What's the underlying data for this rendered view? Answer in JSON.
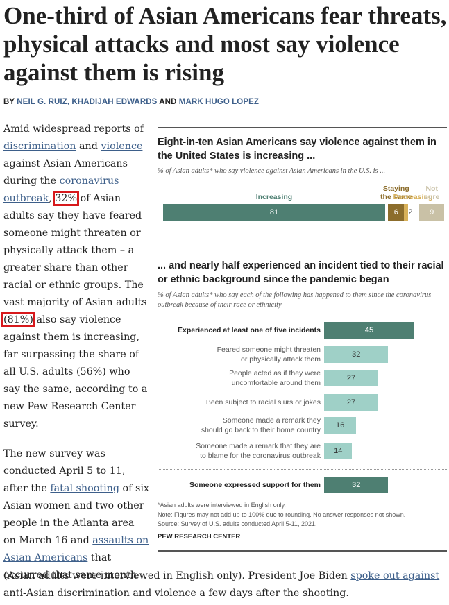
{
  "headline": "One-third of Asian Americans fear threats, physical attacks and most say violence against them is rising",
  "byline": {
    "prefix": "BY",
    "author1": "NEIL G. RUIZ, KHADIJAH EDWARDS",
    "and": "AND",
    "author2": "MARK HUGO LOPEZ"
  },
  "article": {
    "p1": {
      "t1": "Amid widespread reports of ",
      "l1": "discrimination",
      "t2": " and ",
      "l2": "violence",
      "t3": " against Asian Americans during the ",
      "l3": "coronavirus outbreak",
      "t4": ", ",
      "h1": "32%",
      "t5": " of Asian adults say they have feared someone might threaten or physically attack them – a greater share than other racial or ethnic groups. The vast majority of Asian adults ",
      "h2": "(81%)",
      "t6": " also say violence against them is increasing, far surpassing the share of all U.S. adults (56%) who say the same, according to a new Pew Research Center survey."
    },
    "p2": {
      "t1": "The new survey was conducted April 5 to 11, after the ",
      "l1": "fatal shooting",
      "t2": " of six Asian women and two other people in the Atlanta area on March 16 and ",
      "l2": "assaults on Asian Americans",
      "t3": " that occurred that same month"
    },
    "p2_end": {
      "t1": "(Asian adults were interviewed in English only). President Joe Biden ",
      "l1": "spoke out against",
      "t2": " anti-Asian discrimination and violence a few days after the shooting."
    }
  },
  "chart_data": [
    {
      "type": "bar",
      "orientation": "horizontal-stacked",
      "title": "Eight-in-ten Asian Americans say violence against them in the United States is increasing ...",
      "subtitle": "% of Asian adults* who say violence against Asian Americans in the U.S. is ...",
      "categories": [
        "Increasing",
        "Staying the same",
        "Decreasing",
        "Not sure"
      ],
      "values": [
        81,
        6,
        2,
        9
      ],
      "colors": [
        "#4e7f72",
        "#8c6d2c",
        "#d8b15a",
        "#c9c1a6"
      ],
      "label_lines": [
        [
          "Increasing"
        ],
        [
          "Staying",
          "the same"
        ],
        [
          "Decreasing"
        ],
        [
          "Not",
          "sure"
        ]
      ],
      "label_colors": [
        "#4e7f72",
        "#8c6d2c",
        "#d8b15a",
        "#c9c1a6"
      ]
    },
    {
      "type": "bar",
      "orientation": "horizontal",
      "title": "... and nearly half experienced an incident tied to their racial or ethnic background since the pandemic began",
      "subtitle": "% of Asian adults* who say each of the following has happened to them since the coronavirus outbreak because of their race or ethnicity",
      "rows": [
        {
          "label": [
            "Experienced at least one of five incidents"
          ],
          "value": 45,
          "bold": true,
          "color": "#4e7f72"
        },
        {
          "label": [
            "Feared someone might threaten",
            "or physically attack them"
          ],
          "value": 32,
          "bold": false,
          "color": "#9fd0c7"
        },
        {
          "label": [
            "People acted as if they were",
            "uncomfortable around them"
          ],
          "value": 27,
          "bold": false,
          "color": "#9fd0c7"
        },
        {
          "label": [
            "Been subject to racial slurs or jokes"
          ],
          "value": 27,
          "bold": false,
          "color": "#9fd0c7"
        },
        {
          "label": [
            "Someone made a remark they",
            "should go back to their home country"
          ],
          "value": 16,
          "bold": false,
          "color": "#9fd0c7"
        },
        {
          "label": [
            "Someone made a remark that they are",
            "to blame for the coronavirus outbreak"
          ],
          "value": 14,
          "bold": false,
          "color": "#9fd0c7"
        },
        {
          "label": [
            "Someone expressed support for them"
          ],
          "value": 32,
          "bold": true,
          "color": "#4e7f72"
        }
      ]
    }
  ],
  "notes": {
    "n1": "*Asian adults were interviewed in English only.",
    "n2": "Note: Figures may not add up to 100% due to rounding. No answer responses not shown.",
    "n3": "Source: Survey of U.S. adults conducted April 5-11, 2021.",
    "source": "PEW RESEARCH CENTER"
  }
}
